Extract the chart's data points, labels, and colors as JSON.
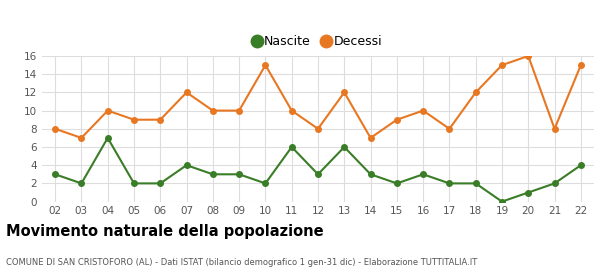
{
  "years": [
    "02",
    "03",
    "04",
    "05",
    "06",
    "07",
    "08",
    "09",
    "10",
    "11",
    "12",
    "13",
    "14",
    "15",
    "16",
    "17",
    "18",
    "19",
    "20",
    "21",
    "22"
  ],
  "nascite": [
    3,
    2,
    7,
    2,
    2,
    4,
    3,
    3,
    2,
    6,
    3,
    6,
    3,
    2,
    3,
    2,
    2,
    0,
    1,
    2,
    4
  ],
  "decessi": [
    8,
    7,
    10,
    9,
    9,
    12,
    10,
    10,
    15,
    10,
    8,
    12,
    7,
    9,
    10,
    8,
    12,
    15,
    16,
    8,
    15
  ],
  "nascite_color": "#3a7d27",
  "decessi_color": "#e87722",
  "background_color": "#ffffff",
  "grid_color": "#dddddd",
  "title": "Movimento naturale della popolazione",
  "subtitle": "COMUNE DI SAN CRISTOFORO (AL) - Dati ISTAT (bilancio demografico 1 gen-31 dic) - Elaborazione TUTTITALIA.IT",
  "legend_nascite": "Nascite",
  "legend_decessi": "Decessi",
  "ylim": [
    0,
    16
  ],
  "yticks": [
    0,
    2,
    4,
    6,
    8,
    10,
    12,
    14,
    16
  ],
  "marker": "o",
  "markersize": 4,
  "linewidth": 1.5
}
